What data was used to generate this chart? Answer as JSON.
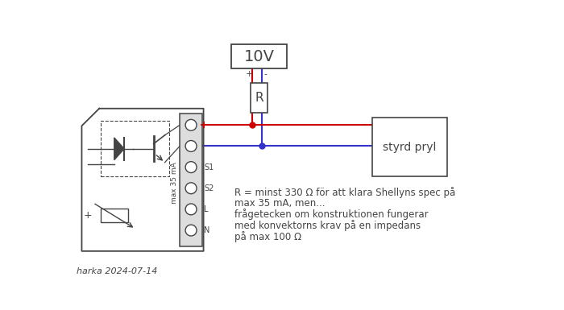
{
  "bg_color": "#ffffff",
  "RED": "#cc0000",
  "BLUE": "#3333cc",
  "DARK": "#444444",
  "source_label": "10V",
  "resistor_label": "R",
  "styrd_label": "styrd pryl",
  "max_label": "max 35 mA",
  "terminal_labels": [
    "S1",
    "S2",
    "L",
    "N"
  ],
  "annotation_line1": "R = minst 330 Ω för att klara Shellyns spec på",
  "annotation_line2": "max 35 mA, men...",
  "annotation_line3": "frågetecken om konstruktionen fungerar",
  "annotation_line4": "med konvektorns krav på en impedans",
  "annotation_line5": "på max 100 Ω",
  "footer": "harka 2024-07-14"
}
